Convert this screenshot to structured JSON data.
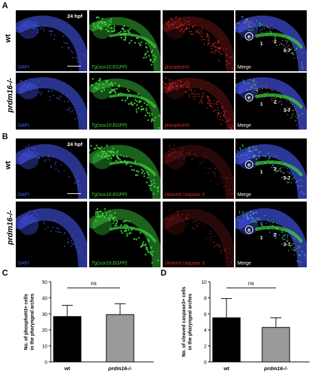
{
  "panels": {
    "A": {
      "letter": "A",
      "stage": "24 hpf",
      "rows": [
        {
          "label": "wt",
          "channels": [
            "DAPI",
            "Tg(sox10:EGFP)",
            "phosphoH3",
            "Merge"
          ]
        },
        {
          "label": "prdm16-/-",
          "channels": [
            "DAPI",
            "Tg(sox10:EGFP)",
            "phosphoH3",
            "Merge"
          ]
        }
      ],
      "merge_labels": {
        "e": "e",
        "a1": "1",
        "a2": "2",
        "a37": "3-7"
      }
    },
    "B": {
      "letter": "B",
      "stage": "24 hpf",
      "rows": [
        {
          "label": "wt",
          "channels": [
            "DAPI",
            "Tg(sox10:EGFP)",
            "cleaved caspase 3",
            "Merge"
          ]
        },
        {
          "label": "prdm16-/-",
          "channels": [
            "DAPI",
            "Tg(sox10:EGFP)",
            "cleaved caspase 3",
            "Merge"
          ]
        }
      ],
      "merge_labels": {
        "e": "e",
        "a1": "1",
        "a2": "2",
        "a37": "3-7"
      }
    },
    "C": {
      "letter": "C"
    },
    "D": {
      "letter": "D"
    }
  },
  "colors": {
    "dapi": "#4a5cff",
    "gfp": "#3dd63d",
    "red": "#e02a2a",
    "wt_bar": "#000000",
    "mut_bar": "#9a9a9a"
  },
  "chart_data": [
    {
      "type": "bar",
      "panel": "C",
      "categories": [
        "wt",
        "prdm16-/-"
      ],
      "values": [
        28.3,
        29.5
      ],
      "errors": [
        7.0,
        6.8
      ],
      "ylabel": "No. of phosphoH3+ cells in the pharyngeal arches",
      "ylabel_lines": [
        "No. of phosphoH3+ cells",
        "in the pharyngeal arches"
      ],
      "ylim": [
        0,
        50
      ],
      "yticks": [
        0,
        10,
        20,
        30,
        40,
        50
      ],
      "significance": "ns"
    },
    {
      "type": "bar",
      "panel": "D",
      "categories": [
        "wt",
        "prdm16-/-"
      ],
      "values": [
        5.5,
        4.3
      ],
      "errors": [
        2.4,
        1.2
      ],
      "ylabel": "No. of cleaved caspase3+ cells in the pharyngeal arches",
      "ylabel_lines": [
        "No. of cleaved caspase3+ cells",
        "in the pharyngeal arches"
      ],
      "ylim": [
        0,
        10
      ],
      "yticks": [
        0,
        2,
        4,
        6,
        8,
        10
      ],
      "significance": "ns"
    }
  ]
}
